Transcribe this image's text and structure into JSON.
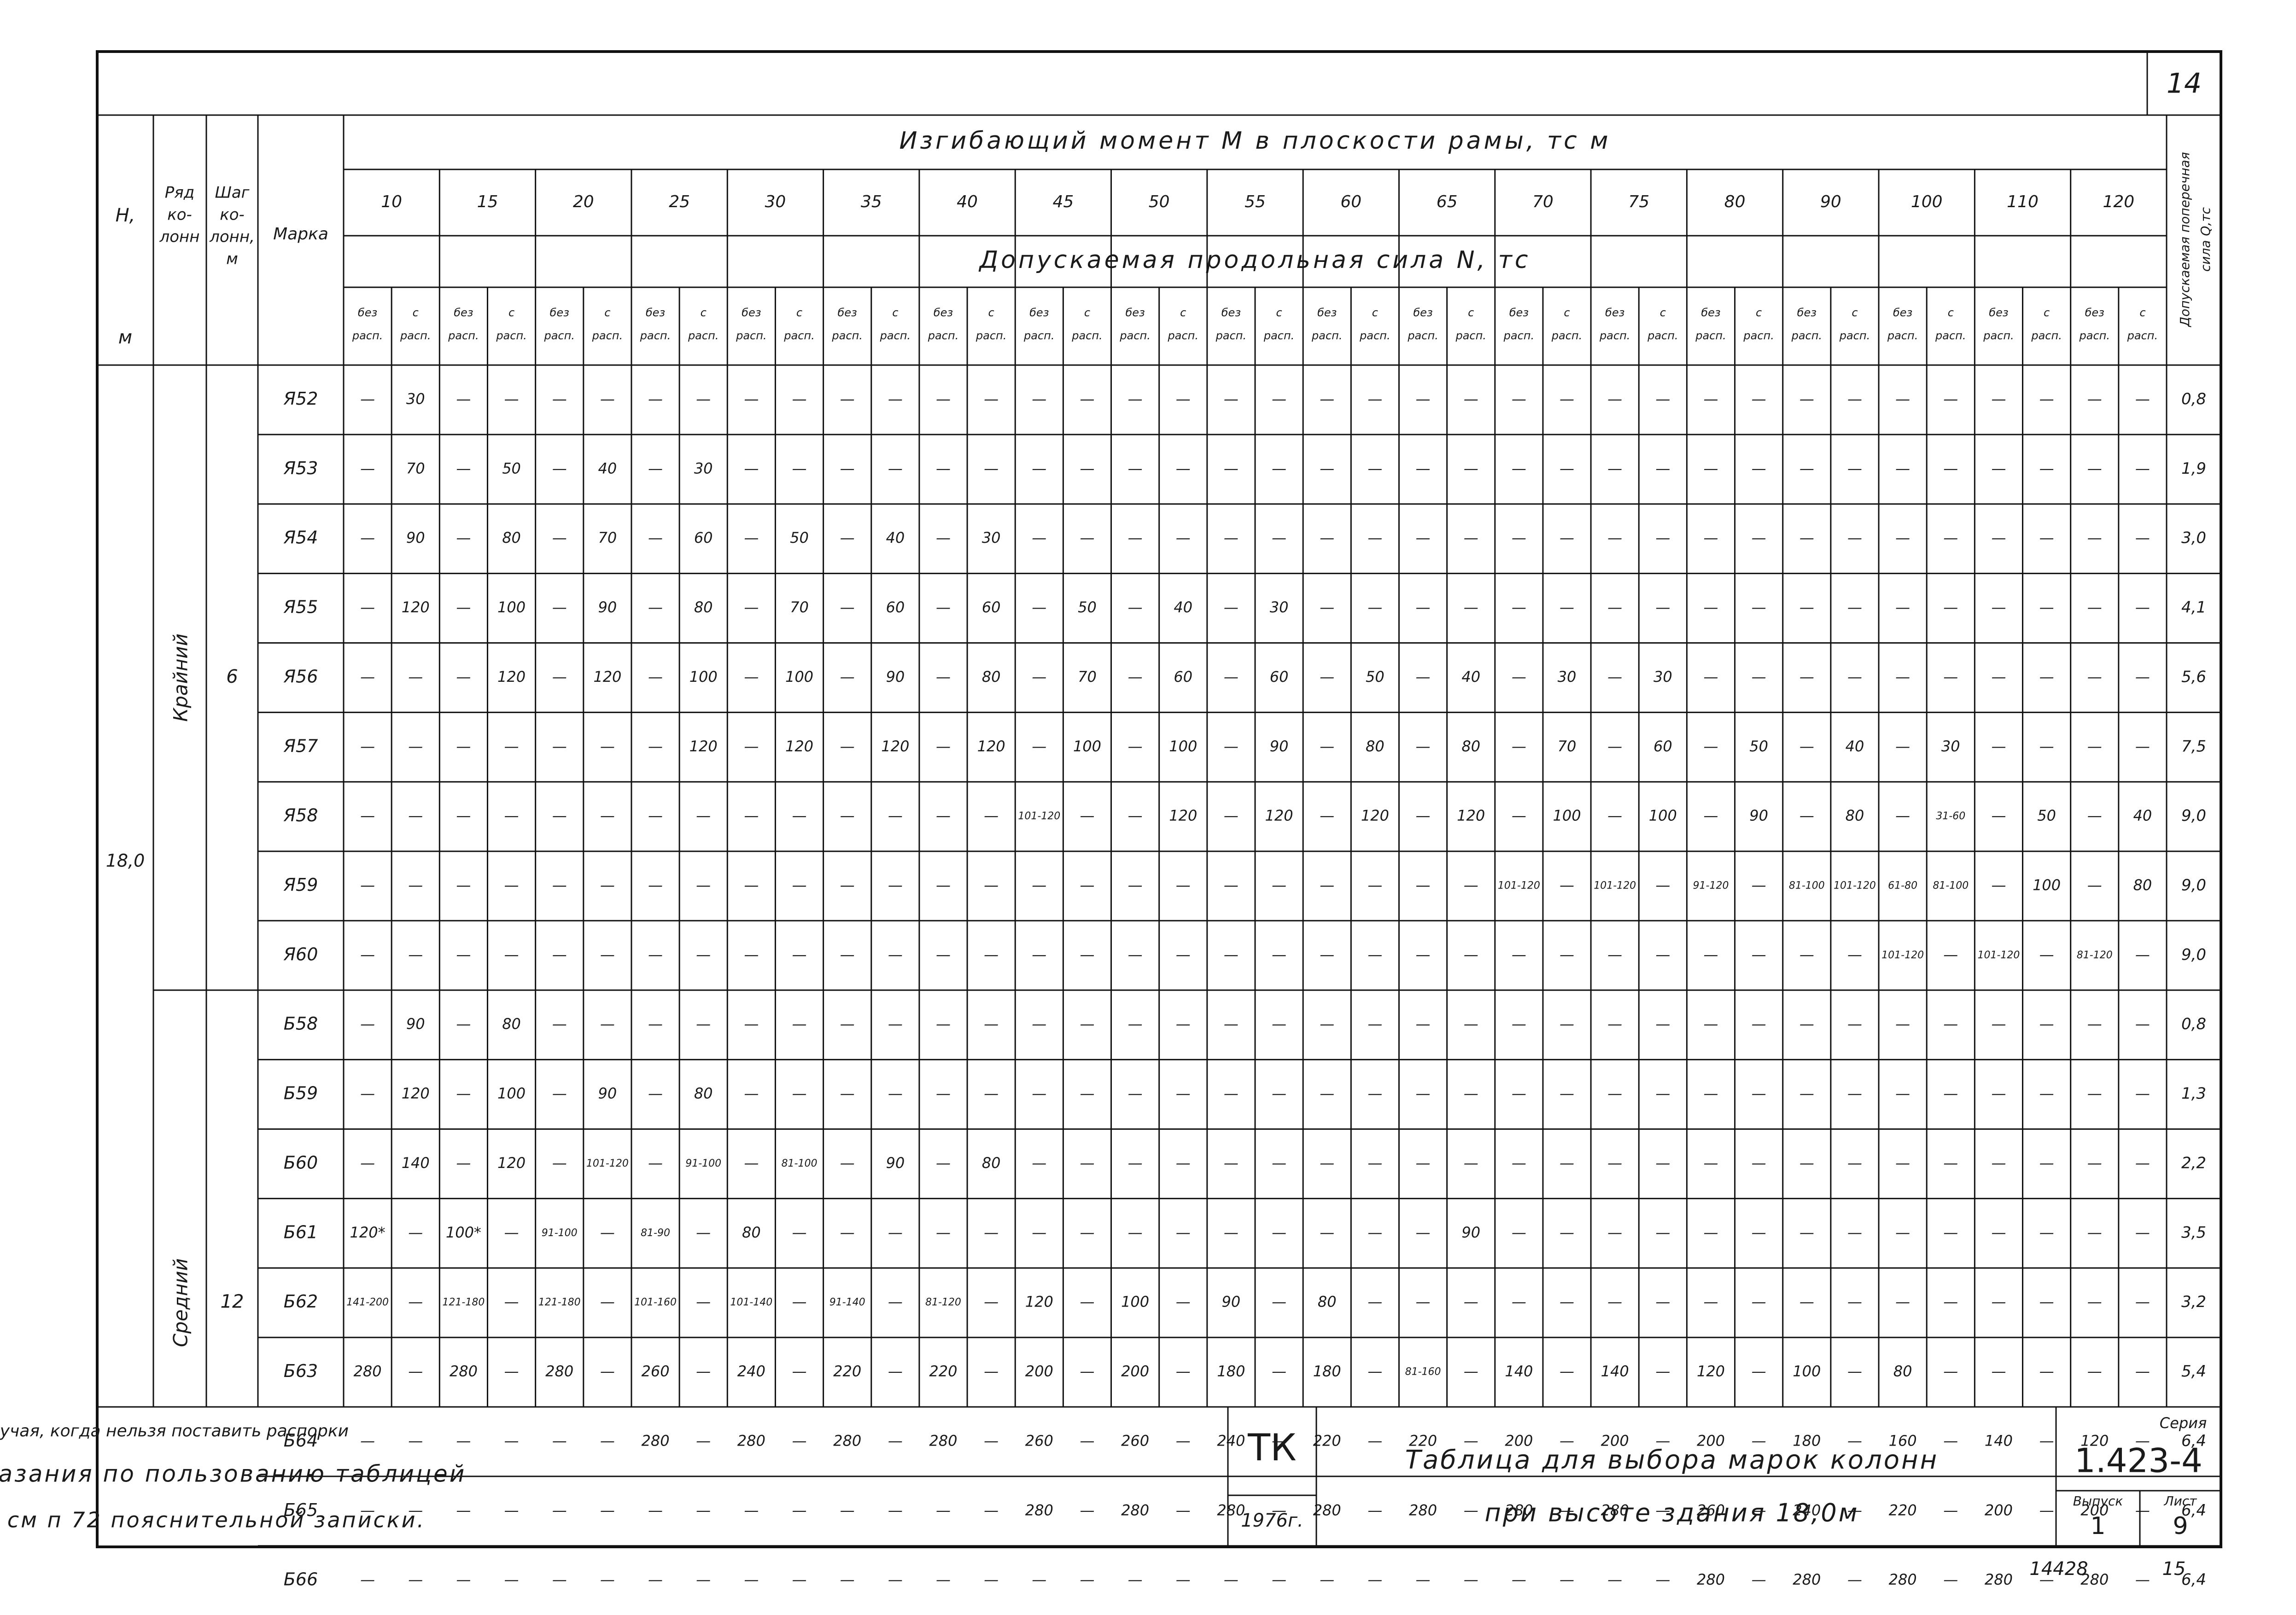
{
  "page_number": "14",
  "header": {
    "h": [
      "H,",
      "м"
    ],
    "row": [
      "Ряд",
      "ко-",
      "лонн"
    ],
    "step": [
      "Шаг",
      "ко-",
      "лонн,",
      "м"
    ],
    "mark": "Марка",
    "moment_title": "Изгибающий момент M в плоскости рамы, тс м",
    "moments": [
      "10",
      "15",
      "20",
      "25",
      "30",
      "35",
      "40",
      "45",
      "50",
      "55",
      "60",
      "65",
      "70",
      "75",
      "80",
      "90",
      "100",
      "110",
      "120"
    ],
    "force_title": "Допускаемая продольная сила N, тс",
    "sub_headers": [
      [
        "без",
        "расп."
      ],
      [
        "с",
        "расп."
      ]
    ],
    "q_title": [
      "Допускаемая поперечная",
      "сила Q,тс"
    ]
  },
  "height": "18,0",
  "groups": [
    {
      "name": "Крайний",
      "step": "6",
      "rows": [
        {
          "mark": "Я52",
          "cells": [
            "—",
            "30",
            "—",
            "—",
            "—",
            "—",
            "—",
            "—",
            "—",
            "—",
            "—",
            "—",
            "—",
            "—",
            "—",
            "—",
            "—",
            "—",
            "—",
            "—",
            "—",
            "—",
            "—",
            "—",
            "—",
            "—",
            "—",
            "—",
            "—",
            "—",
            "—",
            "—",
            "—",
            "—",
            "—",
            "—",
            "—",
            "—"
          ],
          "q": "0,8"
        },
        {
          "mark": "Я53",
          "cells": [
            "—",
            "70",
            "—",
            "50",
            "—",
            "40",
            "—",
            "30",
            "—",
            "—",
            "—",
            "—",
            "—",
            "—",
            "—",
            "—",
            "—",
            "—",
            "—",
            "—",
            "—",
            "—",
            "—",
            "—",
            "—",
            "—",
            "—",
            "—",
            "—",
            "—",
            "—",
            "—",
            "—",
            "—",
            "—",
            "—",
            "—",
            "—"
          ],
          "q": "1,9"
        },
        {
          "mark": "Я54",
          "cells": [
            "—",
            "90",
            "—",
            "80",
            "—",
            "70",
            "—",
            "60",
            "—",
            "50",
            "—",
            "40",
            "—",
            "30",
            "—",
            "—",
            "—",
            "—",
            "—",
            "—",
            "—",
            "—",
            "—",
            "—",
            "—",
            "—",
            "—",
            "—",
            "—",
            "—",
            "—",
            "—",
            "—",
            "—",
            "—",
            "—",
            "—",
            "—"
          ],
          "q": "3,0"
        },
        {
          "mark": "Я55",
          "cells": [
            "—",
            "120",
            "—",
            "100",
            "—",
            "90",
            "—",
            "80",
            "—",
            "70",
            "—",
            "60",
            "—",
            "60",
            "—",
            "50",
            "—",
            "40",
            "—",
            "30",
            "—",
            "—",
            "—",
            "—",
            "—",
            "—",
            "—",
            "—",
            "—",
            "—",
            "—",
            "—",
            "—",
            "—",
            "—",
            "—",
            "—",
            "—"
          ],
          "q": "4,1"
        },
        {
          "mark": "Я56",
          "cells": [
            "—",
            "—",
            "—",
            "120",
            "—",
            "120",
            "—",
            "100",
            "—",
            "100",
            "—",
            "90",
            "—",
            "80",
            "—",
            "70",
            "—",
            "60",
            "—",
            "60",
            "—",
            "50",
            "—",
            "40",
            "—",
            "30",
            "—",
            "30",
            "—",
            "—",
            "—",
            "—",
            "—",
            "—",
            "—",
            "—",
            "—",
            "—"
          ],
          "q": "5,6"
        },
        {
          "mark": "Я57",
          "cells": [
            "—",
            "—",
            "—",
            "—",
            "—",
            "—",
            "—",
            "120",
            "—",
            "120",
            "—",
            "120",
            "—",
            "120",
            "—",
            "100",
            "—",
            "100",
            "—",
            "90",
            "—",
            "80",
            "—",
            "80",
            "—",
            "70",
            "—",
            "60",
            "—",
            "50",
            "—",
            "40",
            "—",
            "30",
            "—",
            "—",
            "—",
            "—"
          ],
          "q": "7,5"
        },
        {
          "mark": "Я58",
          "cells": [
            "—",
            "—",
            "—",
            "—",
            "—",
            "—",
            "—",
            "—",
            "—",
            "—",
            "—",
            "—",
            "—",
            "—",
            "101-120",
            "—",
            "—",
            "120",
            "—",
            "120",
            "—",
            "120",
            "—",
            "120",
            "—",
            "100",
            "—",
            "100",
            "—",
            "90",
            "—",
            "80",
            "—",
            "31-60",
            "—",
            "50",
            "—",
            "40"
          ],
          "q": "9,0"
        },
        {
          "mark": "Я59",
          "cells": [
            "—",
            "—",
            "—",
            "—",
            "—",
            "—",
            "—",
            "—",
            "—",
            "—",
            "—",
            "—",
            "—",
            "—",
            "—",
            "—",
            "—",
            "—",
            "—",
            "—",
            "—",
            "—",
            "—",
            "—",
            "101-120",
            "—",
            "101-120",
            "—",
            "91-120",
            "—",
            "81-100",
            "101-120",
            "61-80",
            "81-100",
            "—",
            "100",
            "—",
            "80"
          ],
          "q": "9,0"
        },
        {
          "mark": "Я60",
          "cells": [
            "—",
            "—",
            "—",
            "—",
            "—",
            "—",
            "—",
            "—",
            "—",
            "—",
            "—",
            "—",
            "—",
            "—",
            "—",
            "—",
            "—",
            "—",
            "—",
            "—",
            "—",
            "—",
            "—",
            "—",
            "—",
            "—",
            "—",
            "—",
            "—",
            "—",
            "—",
            "—",
            "101-120",
            "—",
            "101-120",
            "—",
            "81-120",
            "—"
          ],
          "q": "9,0"
        }
      ]
    },
    {
      "name": "Средний",
      "step": "12",
      "rows": [
        {
          "mark": "Б58",
          "cells": [
            "—",
            "90",
            "—",
            "80",
            "—",
            "—",
            "—",
            "—",
            "—",
            "—",
            "—",
            "—",
            "—",
            "—",
            "—",
            "—",
            "—",
            "—",
            "—",
            "—",
            "—",
            "—",
            "—",
            "—",
            "—",
            "—",
            "—",
            "—",
            "—",
            "—",
            "—",
            "—",
            "—",
            "—",
            "—",
            "—",
            "—",
            "—"
          ],
          "q": "0,8"
        },
        {
          "mark": "Б59",
          "cells": [
            "—",
            "120",
            "—",
            "100",
            "—",
            "90",
            "—",
            "80",
            "—",
            "—",
            "—",
            "—",
            "—",
            "—",
            "—",
            "—",
            "—",
            "—",
            "—",
            "—",
            "—",
            "—",
            "—",
            "—",
            "—",
            "—",
            "—",
            "—",
            "—",
            "—",
            "—",
            "—",
            "—",
            "—",
            "—",
            "—",
            "—",
            "—"
          ],
          "q": "1,3"
        },
        {
          "mark": "Б60",
          "cells": [
            "—",
            "140",
            "—",
            "120",
            "—",
            "101-120",
            "—",
            "91-100",
            "—",
            "81-100",
            "—",
            "90",
            "—",
            "80",
            "—",
            "—",
            "—",
            "—",
            "—",
            "—",
            "—",
            "—",
            "—",
            "—",
            "—",
            "—",
            "—",
            "—",
            "—",
            "—",
            "—",
            "—",
            "—",
            "—",
            "—",
            "—",
            "—",
            "—"
          ],
          "q": "2,2"
        },
        {
          "mark": "Б61",
          "cells": [
            "120*",
            "—",
            "100*",
            "—",
            "91-100",
            "—",
            "81-90",
            "—",
            "80",
            "—",
            "—",
            "—",
            "—",
            "—",
            "—",
            "—",
            "—",
            "—",
            "—",
            "—",
            "—",
            "—",
            "—",
            "90",
            "—",
            "—",
            "—",
            "—",
            "—",
            "—",
            "—",
            "—",
            "—",
            "—",
            "—",
            "—",
            "—",
            "—"
          ],
          "q": "3,5"
        },
        {
          "mark": "Б62",
          "cells": [
            "141-200",
            "—",
            "121-180",
            "—",
            "121-180",
            "—",
            "101-160",
            "—",
            "101-140",
            "—",
            "91-140",
            "—",
            "81-120",
            "—",
            "120",
            "—",
            "100",
            "—",
            "90",
            "—",
            "80",
            "—",
            "—",
            "—",
            "—",
            "—",
            "—",
            "—",
            "—",
            "—",
            "—",
            "—",
            "—",
            "—",
            "—",
            "—",
            "—",
            "—"
          ],
          "q": "3,2"
        },
        {
          "mark": "Б63",
          "cells": [
            "280",
            "—",
            "280",
            "—",
            "280",
            "—",
            "260",
            "—",
            "240",
            "—",
            "220",
            "—",
            "220",
            "—",
            "200",
            "—",
            "200",
            "—",
            "180",
            "—",
            "180",
            "—",
            "81-160",
            "—",
            "140",
            "—",
            "140",
            "—",
            "120",
            "—",
            "100",
            "—",
            "80",
            "—",
            "—",
            "—",
            "—",
            "—"
          ],
          "q": "5,4"
        },
        {
          "mark": "Б64",
          "cells": [
            "—",
            "—",
            "—",
            "—",
            "—",
            "—",
            "280",
            "—",
            "280",
            "—",
            "280",
            "—",
            "280",
            "—",
            "260",
            "—",
            "260",
            "—",
            "240",
            "—",
            "220",
            "—",
            "220",
            "—",
            "200",
            "—",
            "200",
            "—",
            "200",
            "—",
            "180",
            "—",
            "160",
            "—",
            "140",
            "—",
            "120",
            "—"
          ],
          "q": "6,4"
        },
        {
          "mark": "Б65",
          "cells": [
            "—",
            "—",
            "—",
            "—",
            "—",
            "—",
            "—",
            "—",
            "—",
            "—",
            "—",
            "—",
            "—",
            "—",
            "280",
            "—",
            "280",
            "—",
            "280",
            "—",
            "280",
            "—",
            "280",
            "—",
            "280",
            "—",
            "280",
            "—",
            "260",
            "—",
            "240",
            "—",
            "220",
            "—",
            "200",
            "—",
            "200",
            "—"
          ],
          "q": "6,4"
        },
        {
          "mark": "Б66",
          "cells": [
            "—",
            "—",
            "—",
            "—",
            "—",
            "—",
            "—",
            "—",
            "—",
            "—",
            "—",
            "—",
            "—",
            "—",
            "—",
            "—",
            "—",
            "—",
            "—",
            "—",
            "—",
            "—",
            "—",
            "—",
            "—",
            "—",
            "—",
            "—",
            "280",
            "—",
            "280",
            "—",
            "280",
            "—",
            "280",
            "—",
            "280",
            "—"
          ],
          "q": "6,4"
        }
      ]
    }
  ],
  "footnote": "* Только для случая, когда нельзя поставить распорки",
  "notes": [
    "Указания по пользованию таблицей",
    "см п 72 пояснительной записки."
  ],
  "title_block": {
    "org": "ТК",
    "year": "1976г.",
    "title": [
      "Таблица для выбора марок колонн",
      "при высоте здания 18,0м"
    ],
    "series_label": "Серия",
    "series": "1.423-4",
    "issue_label": "Выпуск",
    "issue": "1",
    "sheet_label": "Лист",
    "sheet": "9"
  },
  "stamp": "14428",
  "stamp_page": "15"
}
